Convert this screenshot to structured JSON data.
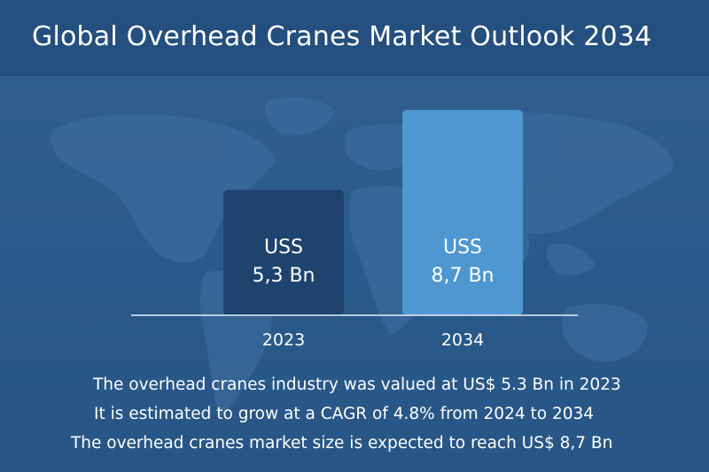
{
  "header": {
    "title": "Global Overhead Cranes Market Outlook 2034"
  },
  "colors": {
    "background": "#2c5d8f",
    "header": "#244f7e",
    "bar_2023": "#1e436e",
    "bar_2034": "#4e97d1",
    "text": "#ffffff"
  },
  "chart_data": {
    "type": "bar",
    "categories": [
      "2023",
      "2034"
    ],
    "values": [
      5.3,
      8.7
    ],
    "value_labels": [
      [
        "USS",
        "5,3 Bn"
      ],
      [
        "USS",
        "8,7 Bn"
      ]
    ],
    "title": "",
    "xlabel": "",
    "ylabel": "",
    "ylim": [
      0,
      8.7
    ],
    "grid": false,
    "legend": "none"
  },
  "notes": [
    "The overhead cranes industry was valued at US$ 5.3 Bn in 2023",
    "It is estimated to grow at a CAGR of 4.8% from 2024 to 2034",
    "The overhead cranes market size is expected to reach US$ 8,7 Bn"
  ]
}
